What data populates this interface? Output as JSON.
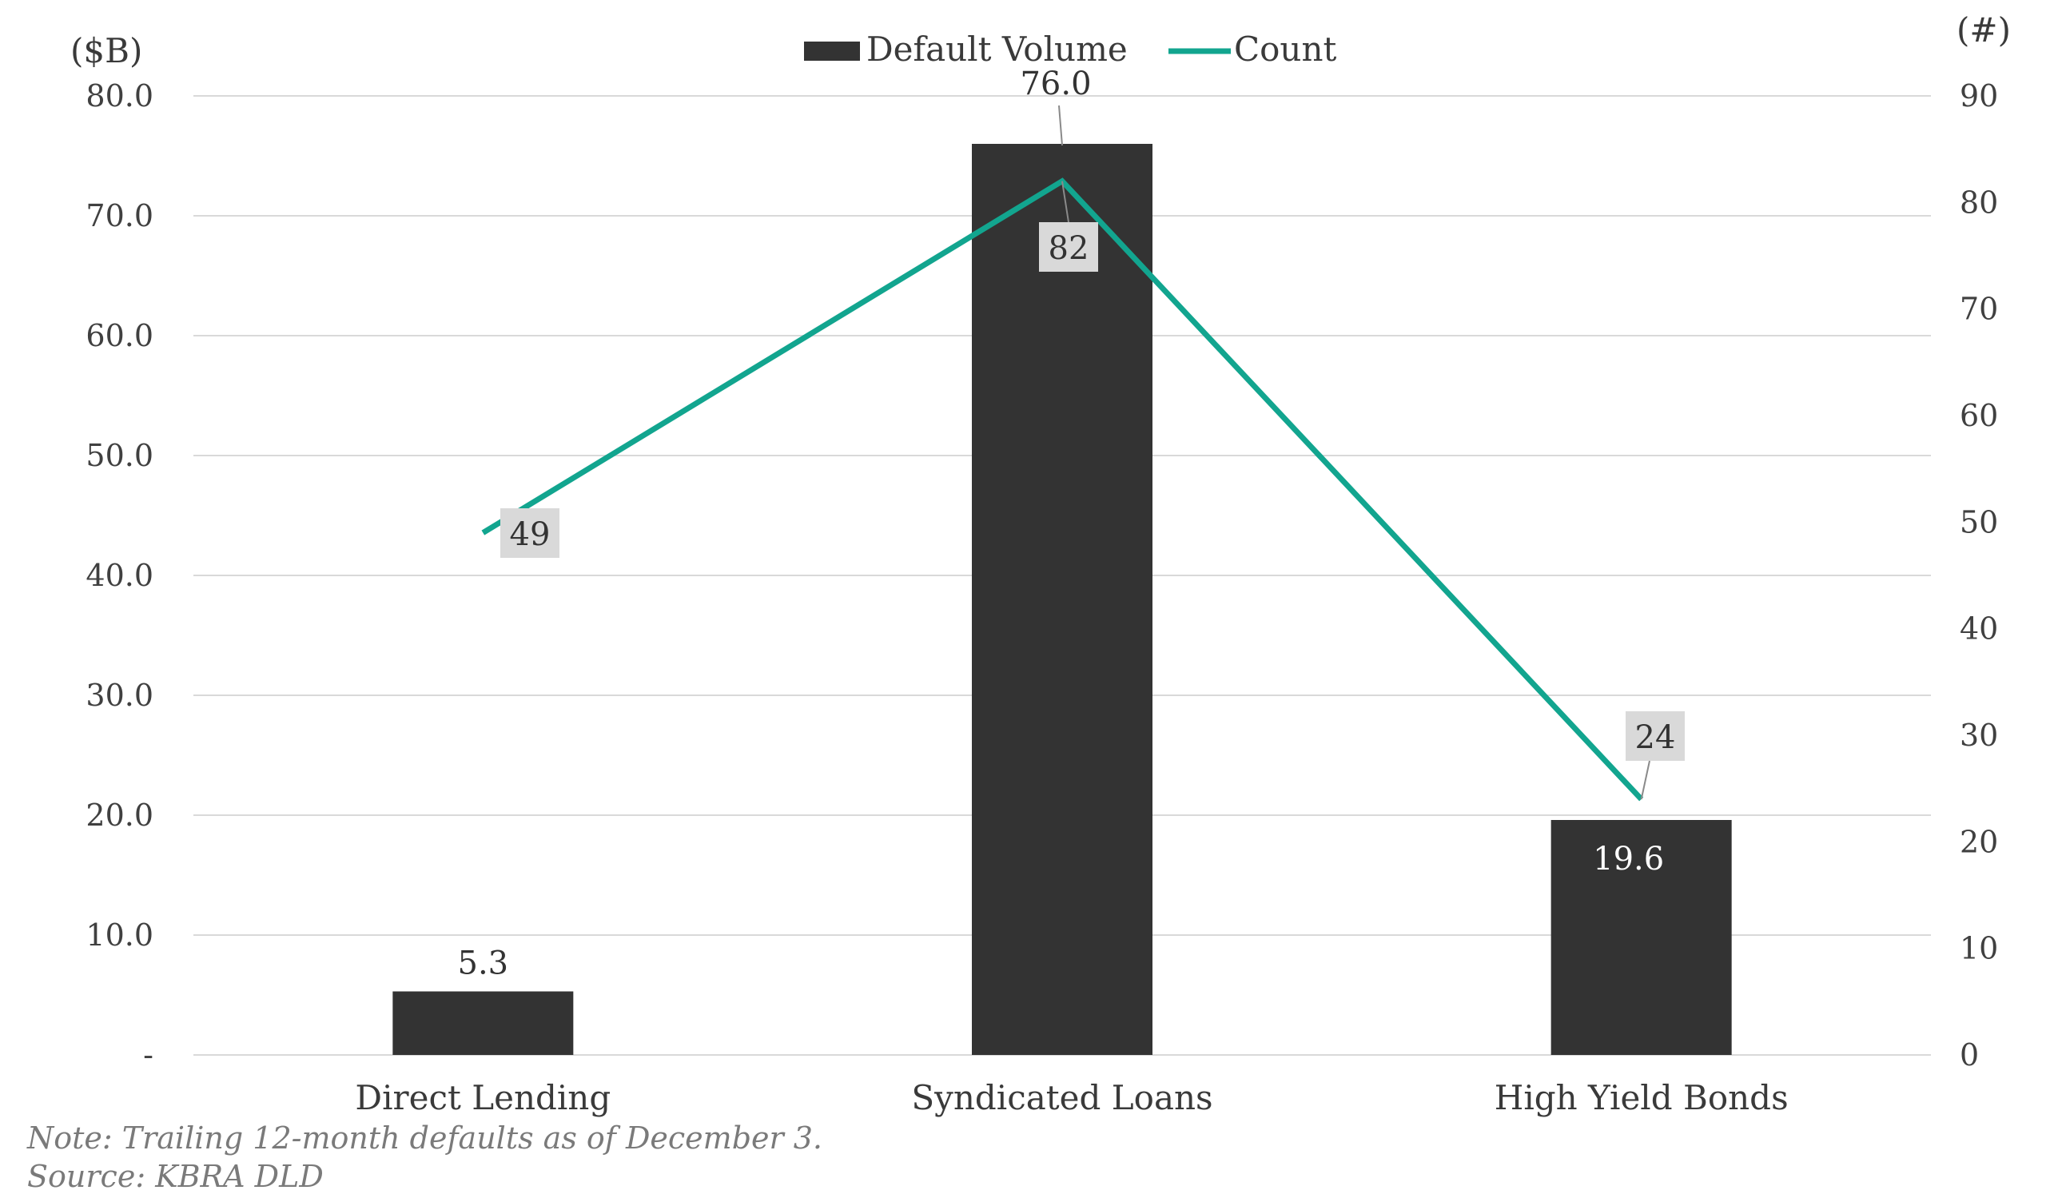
{
  "chart_data": {
    "type": "bar",
    "categories": [
      "Direct Lending",
      "Syndicated Loans",
      "High Yield Bonds"
    ],
    "series": [
      {
        "name": "Default Volume",
        "type": "bar",
        "axis": "left",
        "values": [
          5.3,
          76.0,
          19.6
        ],
        "labels": [
          "5.3",
          "76.0",
          "19.6"
        ],
        "color": "#333333"
      },
      {
        "name": "Count",
        "type": "line",
        "axis": "right",
        "values": [
          49,
          82,
          24
        ],
        "labels": [
          "49",
          "82",
          "24"
        ],
        "color": "#12a58f"
      }
    ],
    "left_axis": {
      "unit": "($B)",
      "ylim": [
        0,
        80
      ],
      "ticks": [
        0,
        10,
        20,
        30,
        40,
        50,
        60,
        70,
        80
      ],
      "tick_labels": [
        "-",
        "10.0",
        "20.0",
        "30.0",
        "40.0",
        "50.0",
        "60.0",
        "70.0",
        "80.0"
      ]
    },
    "right_axis": {
      "unit": "(#)",
      "ylim": [
        0,
        90
      ],
      "ticks": [
        0,
        10,
        20,
        30,
        40,
        50,
        60,
        70,
        80,
        90
      ],
      "tick_labels": [
        "0",
        "10",
        "20",
        "30",
        "40",
        "50",
        "60",
        "70",
        "80",
        "90"
      ]
    },
    "grid": true,
    "legend_position": "top-center"
  },
  "notes": {
    "note": "Note: Trailing 12-month defaults as of December 3.",
    "source": "Source: KBRA DLD"
  },
  "colors": {
    "bar": "#333333",
    "line": "#12a58f",
    "grid": "#d9d9d9",
    "label_box": "#d9d9d9"
  }
}
